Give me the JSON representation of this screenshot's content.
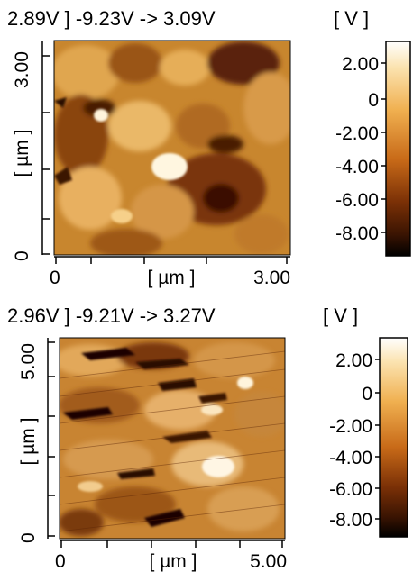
{
  "panels": [
    {
      "header": "2.89V ] -9.23V  -> 3.09V",
      "units_label": "[ V ]",
      "y_axis": {
        "label": "[ µm ]",
        "top_tick": "3.00",
        "bottom_tick": "0"
      },
      "x_axis": {
        "label": "[ µm ]",
        "left_tick": "0",
        "right_tick": "3.00"
      },
      "colorbar_ticks": [
        "2.00",
        "0",
        "-2.00",
        "-4.00",
        "-6.00",
        "-8.00"
      ]
    },
    {
      "header": "2.96V ] -9.21V  -> 3.27V",
      "units_label": "[ V ]",
      "y_axis": {
        "label": "[ µm ]",
        "top_tick": "5.00",
        "bottom_tick": "0"
      },
      "x_axis": {
        "label": "[ µm ]",
        "left_tick": "0",
        "right_tick": "5.00"
      },
      "colorbar_ticks": [
        "2.00",
        "0",
        "-2.00",
        "-4.00",
        "-6.00",
        "-8.00"
      ]
    }
  ],
  "colors": {
    "map_base": "#c8862e",
    "colormap_top": "#ffffff",
    "colormap_mid": "#e8a040",
    "colormap_low": "#8a3a08",
    "colormap_bottom": "#000000"
  }
}
